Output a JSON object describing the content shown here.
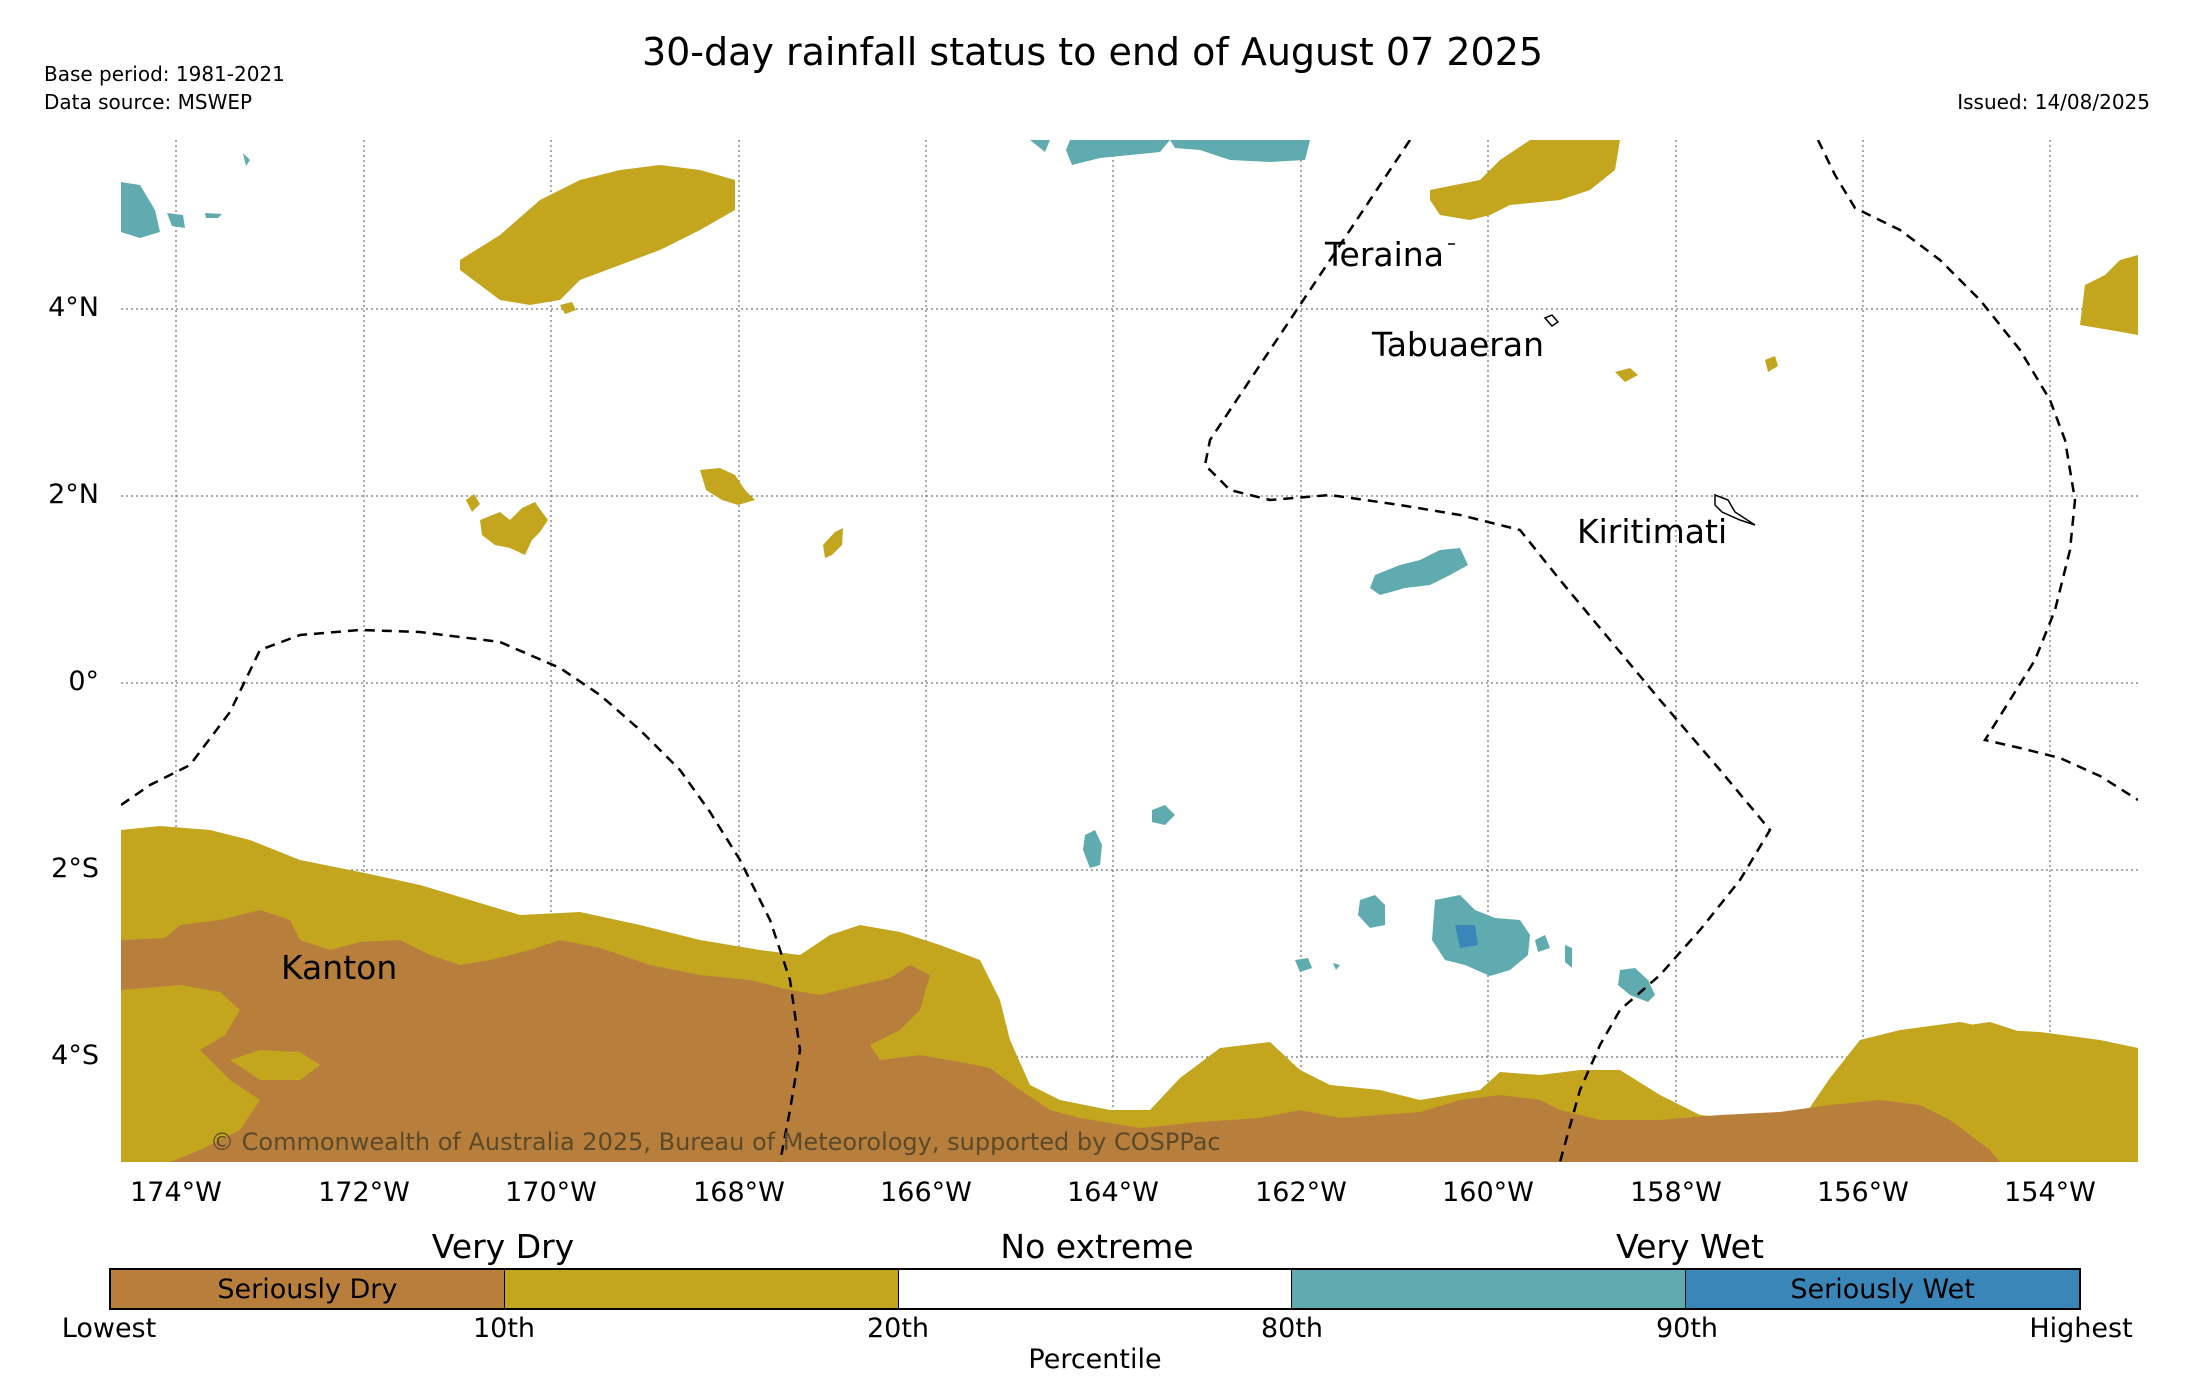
{
  "title": "30-day rainfall status to end of August 07 2025",
  "base_period": "Base period: 1981-2021",
  "data_source": "Data source: MSWEP",
  "issued": "Issued: 14/08/2025",
  "copyright": "© Commonwealth of Australia 2025, Bureau of Meteorology, supported by COSPPac",
  "lat_labels": [
    "4°N",
    "2°N",
    "0°",
    "2°S",
    "4°S"
  ],
  "lon_labels": [
    "174°W",
    "172°W",
    "170°W",
    "168°W",
    "166°W",
    "164°W",
    "162°W",
    "160°W",
    "158°W",
    "156°W",
    "154°W"
  ],
  "places": [
    "Teraina",
    "Tabuaeran",
    "Kiritimati",
    "Kanton"
  ],
  "legend": {
    "categories": [
      "Very Dry",
      "No extreme",
      "Very Wet"
    ],
    "segments": [
      {
        "label": "Seriously Dry",
        "color": "#b87f3c"
      },
      {
        "label": "",
        "color": "#c4a51e"
      },
      {
        "label": "",
        "color": "#ffffff"
      },
      {
        "label": "",
        "color": "#5fabb0"
      },
      {
        "label": "Seriously Wet",
        "color": "#3a86b8"
      }
    ],
    "percentiles": [
      "Lowest",
      "10th",
      "20th",
      "80th",
      "90th",
      "Highest"
    ],
    "axis_title": "Percentile"
  },
  "colors": {
    "seriously_dry": "#b87f3c",
    "very_dry": "#c4a51e",
    "very_wet": "#5fabb0",
    "seriously_wet": "#3a86b8"
  }
}
